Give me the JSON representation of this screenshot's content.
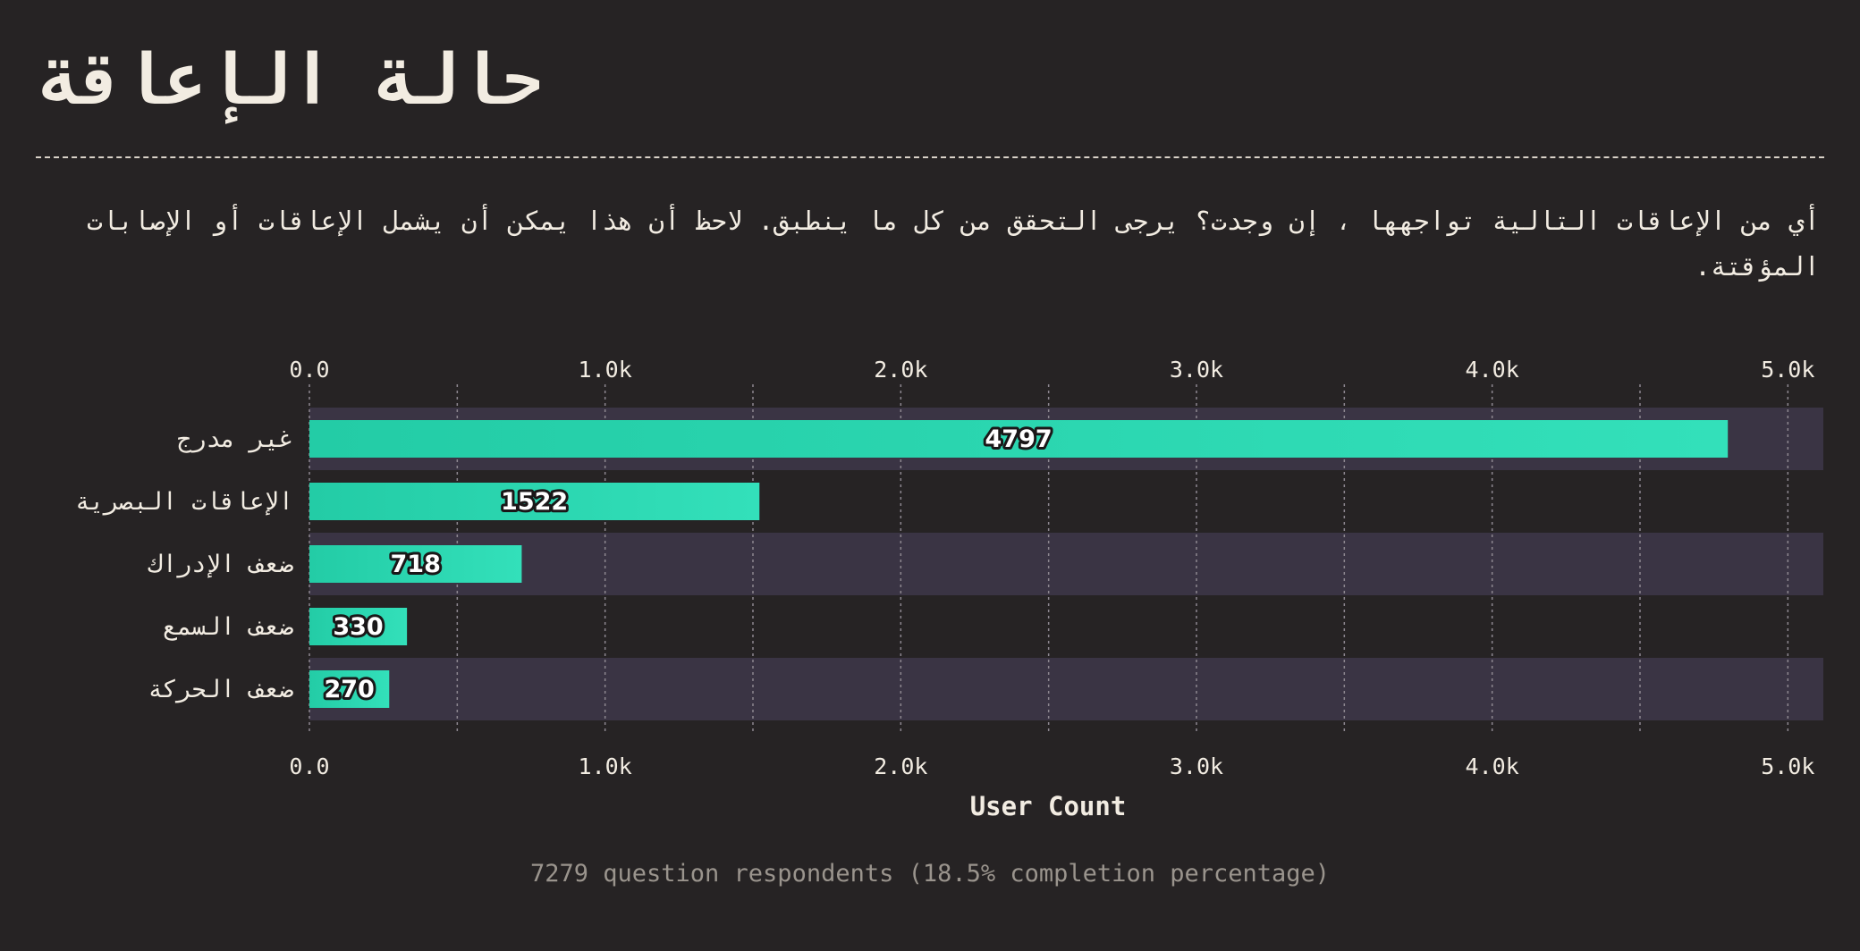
{
  "title": "حالة الإعاقة",
  "question": {
    "line1": "أي من الإعاقات التالية تواجهها ، إن وجدت؟ يرجى التحقق من كل ما ينطبق. لاحظ أن هذا يمكن أن يشمل الإعاقات أو الإصابات",
    "line2": "المؤقتة."
  },
  "footer": "7279 question respondents (18.5% completion percentage)",
  "colors": {
    "background": "#262324",
    "bar": "#2fd9b3",
    "band": "#3a3444",
    "text": "#f2ece2",
    "muted": "#9a948d"
  },
  "chart_data": {
    "type": "bar",
    "orientation": "horizontal",
    "categories": [
      "غير مدرج",
      "الإعاقات البصرية",
      "ضعف الإدراك",
      "ضعف السمع",
      "ضعف الحركة"
    ],
    "values": [
      4797,
      1522,
      718,
      330,
      270
    ],
    "xlabel": "User Count",
    "xlim": [
      0,
      5120
    ],
    "xticks": [
      0,
      1000,
      2000,
      3000,
      4000,
      5000
    ],
    "xtick_labels": [
      "0.0",
      "1.0k",
      "2.0k",
      "3.0k",
      "4.0k",
      "5.0k"
    ],
    "grid": "vertical-dotted",
    "axis_position": "top-and-bottom"
  }
}
